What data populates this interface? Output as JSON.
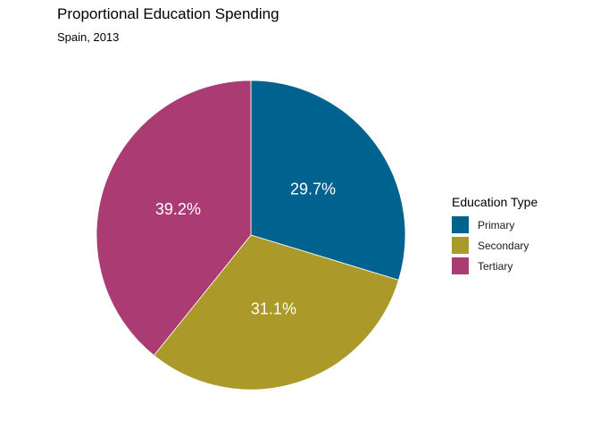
{
  "chart_data": {
    "type": "pie",
    "title": "Proportional Education Spending",
    "subtitle": "Spain, 2013",
    "legend_title": "Education Type",
    "legend_position": "right",
    "slices": [
      {
        "label": "Primary",
        "value": 29.7,
        "display": "29.7%",
        "color": "#00628e"
      },
      {
        "label": "Secondary",
        "value": 31.1,
        "display": "31.1%",
        "color": "#ab9a2a"
      },
      {
        "label": "Tertiary",
        "value": 39.2,
        "display": "39.2%",
        "color": "#aa3b73"
      }
    ]
  }
}
